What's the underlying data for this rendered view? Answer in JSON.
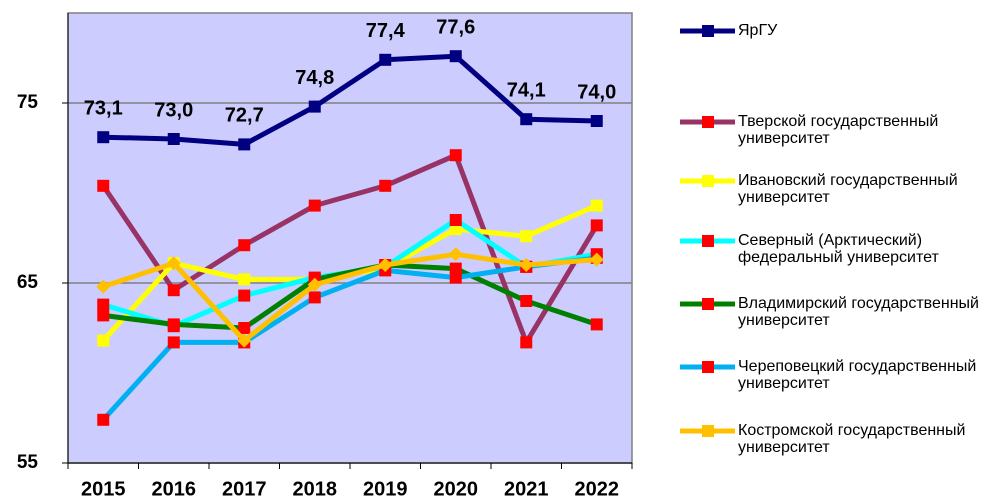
{
  "chart_data": {
    "type": "line",
    "categories": [
      "2015",
      "2016",
      "2017",
      "2018",
      "2019",
      "2020",
      "2021",
      "2022"
    ],
    "ylim": [
      55,
      80
    ],
    "yticks": [
      55,
      65,
      75
    ],
    "grid": true,
    "series": [
      {
        "name": "ЯрГУ",
        "color": "#000080",
        "marker_color": "#000080",
        "values": [
          73.1,
          73.0,
          72.7,
          74.8,
          77.4,
          77.6,
          74.1,
          74.0
        ],
        "value_labels": [
          "73,1",
          "73,0",
          "72,7",
          "74,8",
          "77,4",
          "77,6",
          "74,1",
          "74,0"
        ]
      },
      {
        "name": "Тверской государственный университет",
        "color": "#993366",
        "marker_color": "#ff0000",
        "values": [
          70.4,
          64.6,
          67.1,
          69.3,
          70.4,
          72.1,
          61.7,
          68.2
        ]
      },
      {
        "name": "Ивановский государственный университет",
        "color": "#ffff00",
        "marker_color": "#ffff00",
        "values": [
          61.8,
          66.1,
          65.2,
          65.2,
          65.8,
          68.0,
          67.6,
          69.3
        ]
      },
      {
        "name": "Северный (Арктический) федеральный университет",
        "color": "#00ffff",
        "marker_color": "#ff0000",
        "values": [
          63.8,
          62.6,
          64.3,
          65.3,
          65.9,
          68.5,
          65.9,
          66.6
        ]
      },
      {
        "name": "Владимирский государственный университет",
        "color": "#008000",
        "marker_color": "#ff0000",
        "values": [
          63.2,
          62.7,
          62.5,
          65.2,
          66.0,
          65.8,
          64.0,
          62.7
        ]
      },
      {
        "name": "Череповецкий государственный университет",
        "color": "#00b0f0",
        "marker_color": "#ff0000",
        "values": [
          57.4,
          61.7,
          61.7,
          64.2,
          65.7,
          65.3,
          65.9,
          66.4
        ]
      },
      {
        "name": "Костромской государственный университет",
        "color": "#ffc000",
        "marker_color": "#ffc000",
        "values": [
          64.8,
          66.1,
          61.8,
          64.9,
          66.0,
          66.6,
          66.0,
          66.3
        ]
      }
    ]
  }
}
